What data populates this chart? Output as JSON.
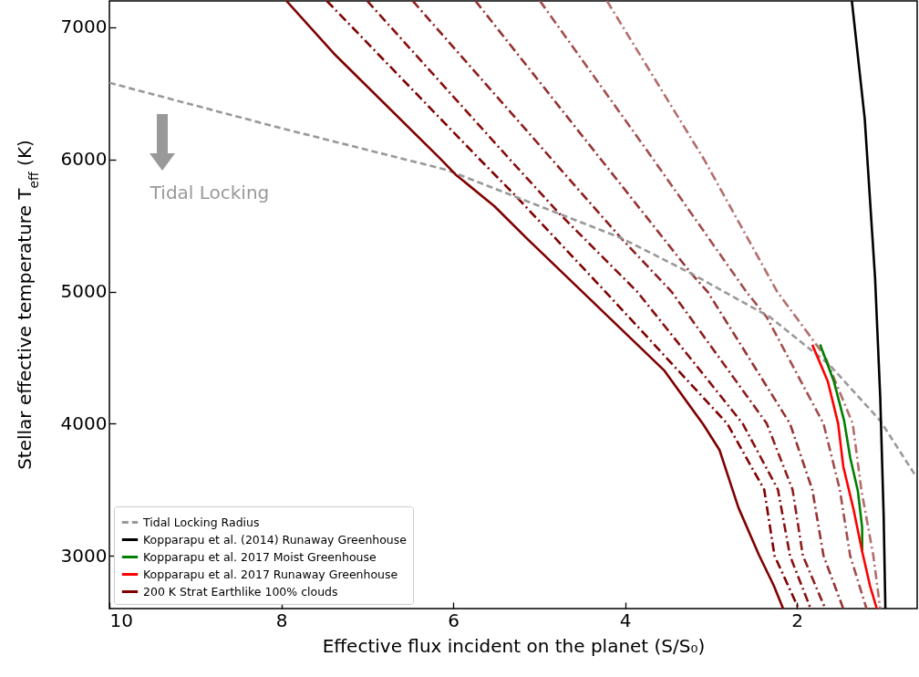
{
  "chart_data": {
    "type": "line",
    "xlabel": "Effective flux incident on the planet (S/S₀)",
    "ylabel": "Stellar effective temperature T$_{eff}$ (K)",
    "xlim": [
      10,
      0.6
    ],
    "xticks": [
      10,
      8,
      6,
      4,
      2
    ],
    "ylim": [
      2600,
      7200
    ],
    "yticks": [
      3000,
      4000,
      5000,
      6000,
      7000
    ],
    "grid": false,
    "legend": "bottom left",
    "annotations": [
      "Tidal Locking"
    ],
    "series": [
      {
        "name": "Tidal Locking Radius",
        "color": "#999999",
        "line_style": "dashed",
        "x": [
          10,
          8.01,
          6.07,
          4.05,
          3.23,
          2.31,
          1.62,
          1.03,
          0.62
        ],
        "values": [
          6580,
          6238,
          5920,
          5407,
          5137,
          4805,
          4445,
          4022,
          3607
        ]
      },
      {
        "name": "Kopparapu et al. (2014) Runaway Greenhouse",
        "color": "#000000",
        "line_style": "solid",
        "x": [
          1.36,
          1.21,
          1.09,
          1.03,
          0.99,
          0.97
        ],
        "values": [
          7200,
          6307,
          5103,
          4202,
          3302,
          2600
        ]
      },
      {
        "name": "Kopparapu et al. 2017 Moist Greenhouse",
        "color": "#008000",
        "line_style": "solid",
        "x": [
          1.73,
          1.57,
          1.45,
          1.38,
          1.29,
          1.24,
          1.24
        ],
        "values": [
          4599,
          4322,
          4022,
          3745,
          3489,
          3212,
          3032
        ]
      },
      {
        "name": "Kopparapu et al. 2017 Runaway Greenhouse",
        "color": "#ff0000",
        "line_style": "solid",
        "x": [
          1.82,
          1.64,
          1.52,
          1.46,
          1.34,
          1.24,
          1.15,
          1.07
        ],
        "values": [
          4597,
          4320,
          4001,
          3676,
          3350,
          3032,
          2776,
          2600
        ]
      },
      {
        "name": "200 K Strat Earthlike 100% clouds",
        "color": "#800000",
        "line_style": "solid",
        "x": [
          7.94,
          7.39,
          6.15,
          5.97,
          5.52,
          5.15,
          3.54,
          3.09,
          2.9,
          2.68,
          2.44,
          2.27,
          2.16
        ],
        "values": [
          7200,
          6803,
          6006,
          5885,
          5646,
          5407,
          4400,
          3995,
          3800,
          3364,
          3004,
          2776,
          2600
        ]
      },
      {
        "color": "#800000",
        "line_style": "dashdot",
        "x": [
          7.47,
          5.69,
          5.29,
          4.23,
          2.81,
          2.38,
          2.26,
          1.98
        ],
        "values": [
          7200,
          6000,
          5736,
          5000,
          4000,
          3500,
          3000,
          2600
        ]
      },
      {
        "color": "#870e0e",
        "line_style": "dashdot",
        "x": [
          7.0,
          5.34,
          4.76,
          3.86,
          2.63,
          2.22,
          2.08,
          1.84
        ],
        "values": [
          7200,
          6000,
          5587,
          5000,
          4000,
          3500,
          3000,
          2600
        ]
      },
      {
        "color": "#8d1e1e",
        "line_style": "dashdot",
        "x": [
          6.47,
          4.85,
          4.05,
          3.46,
          2.35,
          2.05,
          1.93,
          1.67
        ],
        "values": [
          7200,
          6000,
          5407,
          5000,
          4000,
          3500,
          3000,
          2600
        ]
      },
      {
        "color": "#963333",
        "line_style": "dashdot",
        "x": [
          5.74,
          4.28,
          3.23,
          3.04,
          2.08,
          1.82,
          1.69,
          1.46
        ],
        "values": [
          7200,
          6000,
          5137,
          5000,
          4000,
          3500,
          3000,
          2600
        ]
      },
      {
        "color": "#a24d4d",
        "line_style": "dashdot",
        "x": [
          4.99,
          3.67,
          2.59,
          2.35,
          1.69,
          1.5,
          1.38,
          1.19
        ],
        "values": [
          7200,
          6000,
          5000,
          4805,
          4000,
          3500,
          3000,
          2600
        ]
      },
      {
        "color": "#b46d6d",
        "line_style": "dashdot",
        "x": [
          4.21,
          3.08,
          2.23,
          1.67,
          1.35,
          1.25,
          1.11,
          1.03
        ],
        "values": [
          7200,
          6000,
          5000,
          4507,
          4000,
          3500,
          3000,
          2600
        ]
      }
    ]
  }
}
